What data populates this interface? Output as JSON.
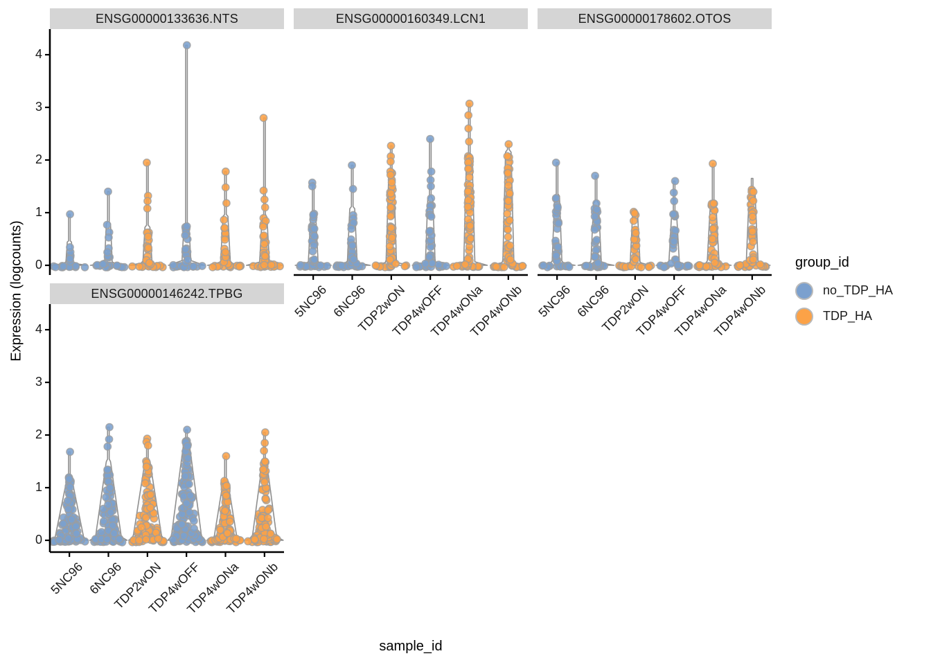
{
  "figure": {
    "y_axis_title": "Expression (logcounts)",
    "x_axis_title": "sample_id",
    "y_ticks": [
      "0",
      "1",
      "2",
      "3",
      "4"
    ],
    "x_categories": [
      "5NC96",
      "6NC96",
      "TDP2wON",
      "TDP4wOFF",
      "TDP4wONa",
      "TDP4wONb"
    ]
  },
  "legend": {
    "title": "group_id",
    "entries": [
      {
        "label": "no_TDP_HA",
        "color": "#7BA0CE"
      },
      {
        "label": "TDP_HA",
        "color": "#FCA247"
      }
    ]
  },
  "colors": {
    "no_TDP_HA": "#7BA0CE",
    "TDP_HA": "#FCA247",
    "point_stroke": "#9e9e9e",
    "violin_stroke": "#8e8e8e",
    "violin_fill": "#fbfbfb",
    "strip_bg": "#d5d5d5",
    "axis": "#000000"
  },
  "chart_data": {
    "type": "violin",
    "x": "sample_id",
    "y": "Expression (logcounts)",
    "group": "group_id",
    "y_range": [
      0,
      4.3
    ],
    "x_categories": [
      "5NC96",
      "6NC96",
      "TDP2wON",
      "TDP4wOFF",
      "TDP4wONa",
      "TDP4wONb"
    ],
    "groups_by_sample": {
      "5NC96": "no_TDP_HA",
      "6NC96": "no_TDP_HA",
      "TDP2wON": "TDP_HA",
      "TDP4wOFF": "no_TDP_HA",
      "TDP4wONa": "TDP_HA",
      "TDP4wONb": "TDP_HA"
    },
    "facets": [
      {
        "label": "ENSG00000133636.NTS",
        "violins": [
          {
            "sample": "5NC96",
            "group": "no_TDP_HA",
            "max": 0.97,
            "body": 0.45,
            "shape": "narrow",
            "stem_w": 5,
            "top_w": 3,
            "base_w": 26,
            "n_col": 6,
            "n_base": 14,
            "outliers": [
              0.97
            ]
          },
          {
            "sample": "6NC96",
            "group": "no_TDP_HA",
            "max": 1.4,
            "body": 0.8,
            "shape": "narrow",
            "stem_w": 5.5,
            "top_w": 3,
            "base_w": 26,
            "n_col": 11,
            "n_base": 14,
            "outliers": [
              1.4
            ]
          },
          {
            "sample": "TDP2wON",
            "group": "TDP_HA",
            "max": 1.95,
            "body": 0.75,
            "shape": "narrow",
            "stem_w": 6.5,
            "top_w": 3.5,
            "base_w": 26,
            "n_col": 16,
            "n_base": 14,
            "outliers": [
              1.95,
              1.32,
              1.22,
              1.08
            ]
          },
          {
            "sample": "TDP4wOFF",
            "group": "no_TDP_HA",
            "max": 4.18,
            "body": 0.78,
            "shape": "narrow",
            "stem_w": 6.5,
            "top_w": 3.5,
            "base_w": 26,
            "n_col": 18,
            "n_base": 14,
            "outliers": [
              4.18
            ]
          },
          {
            "sample": "TDP4wONa",
            "group": "TDP_HA",
            "max": 1.78,
            "body": 0.95,
            "shape": "narrow",
            "stem_w": 7,
            "top_w": 3.5,
            "base_w": 26,
            "n_col": 22,
            "n_base": 14,
            "outliers": [
              1.78,
              1.48,
              1.18
            ]
          },
          {
            "sample": "TDP4wONb",
            "group": "TDP_HA",
            "max": 2.8,
            "body": 0.92,
            "shape": "narrow",
            "stem_w": 7,
            "top_w": 3.5,
            "base_w": 26,
            "n_col": 22,
            "n_base": 14,
            "outliers": [
              2.8,
              1.42,
              1.25,
              1.1
            ]
          }
        ]
      },
      {
        "label": "ENSG00000160349.LCN1",
        "violins": [
          {
            "sample": "5NC96",
            "group": "no_TDP_HA",
            "max": 1.57,
            "body": 1.0,
            "shape": "narrow",
            "stem_w": 7,
            "top_w": 3.5,
            "base_w": 26,
            "n_col": 24,
            "n_base": 14,
            "outliers": [
              1.57,
              1.5
            ]
          },
          {
            "sample": "6NC96",
            "group": "no_TDP_HA",
            "max": 1.9,
            "body": 1.1,
            "shape": "narrow",
            "stem_w": 7,
            "top_w": 3.5,
            "base_w": 26,
            "n_col": 22,
            "n_base": 14,
            "outliers": [
              1.9,
              1.45
            ]
          },
          {
            "sample": "TDP2wON",
            "group": "TDP_HA",
            "max": 2.27,
            "body": 1.78,
            "shape": "narrow",
            "stem_w": 7.5,
            "top_w": 3.5,
            "base_w": 26,
            "n_col": 48,
            "n_base": 14,
            "outliers": [
              2.27,
              2.07,
              1.97
            ]
          },
          {
            "sample": "TDP4wOFF",
            "group": "no_TDP_HA",
            "max": 2.4,
            "body": 1.3,
            "shape": "narrow",
            "stem_w": 7,
            "top_w": 3.5,
            "base_w": 26,
            "n_col": 30,
            "n_base": 14,
            "outliers": [
              2.4,
              1.78,
              1.62,
              1.5
            ]
          },
          {
            "sample": "TDP4wONa",
            "group": "TDP_HA",
            "max": 3.07,
            "body": 2.1,
            "shape": "narrow",
            "stem_w": 8,
            "top_w": 4,
            "base_w": 26,
            "n_col": 55,
            "n_base": 14,
            "outliers": [
              3.07,
              2.85,
              2.6,
              2.35
            ]
          },
          {
            "sample": "TDP4wONb",
            "group": "TDP_HA",
            "max": 2.3,
            "body": 2.15,
            "shape": "narrow",
            "stem_w": 8,
            "top_w": 4,
            "base_w": 26,
            "n_col": 52,
            "n_base": 14,
            "outliers": [
              2.3
            ]
          }
        ]
      },
      {
        "label": "ENSG00000178602.OTOS",
        "violins": [
          {
            "sample": "5NC96",
            "group": "no_TDP_HA",
            "max": 1.95,
            "body": 1.32,
            "shape": "narrow",
            "stem_w": 7,
            "top_w": 3.5,
            "base_w": 26,
            "n_col": 26,
            "n_base": 14,
            "outliers": [
              1.95
            ]
          },
          {
            "sample": "6NC96",
            "group": "no_TDP_HA",
            "max": 1.7,
            "body": 1.2,
            "shape": "narrow",
            "stem_w": 7.5,
            "top_w": 3.5,
            "base_w": 26,
            "n_col": 28,
            "n_base": 14,
            "outliers": [
              1.7
            ]
          },
          {
            "sample": "TDP2wON",
            "group": "TDP_HA",
            "max": 1.05,
            "body": 1.02,
            "shape": "narrow",
            "stem_w": 7,
            "top_w": 3.5,
            "base_w": 26,
            "n_col": 20,
            "n_base": 14,
            "outliers": []
          },
          {
            "sample": "TDP4wOFF",
            "group": "no_TDP_HA",
            "max": 1.6,
            "body": 1.0,
            "shape": "narrow",
            "stem_w": 7.5,
            "top_w": 3.5,
            "base_w": 26,
            "n_col": 22,
            "n_base": 14,
            "outliers": [
              1.6,
              1.38,
              1.22
            ]
          },
          {
            "sample": "TDP4wONa",
            "group": "TDP_HA",
            "max": 1.93,
            "body": 1.18,
            "shape": "narrow",
            "stem_w": 8.5,
            "top_w": 4,
            "base_w": 26,
            "n_col": 32,
            "n_base": 14,
            "outliers": [
              1.93
            ]
          },
          {
            "sample": "TDP4wONb",
            "group": "TDP_HA",
            "max": 1.65,
            "body": 1.45,
            "shape": "narrow",
            "stem_w": 8.5,
            "top_w": 4,
            "base_w": 26,
            "n_col": 34,
            "n_base": 14,
            "outliers": []
          }
        ]
      },
      {
        "label": "ENSG00000146242.TPBG",
        "violins": [
          {
            "sample": "5NC96",
            "group": "no_TDP_HA",
            "max": 1.68,
            "body": 1.2,
            "shape": "cone",
            "stem_w": 20,
            "top_w": 3,
            "base_w": 27,
            "n_col": 85,
            "n_base": 14,
            "outliers": [
              1.68
            ]
          },
          {
            "sample": "6NC96",
            "group": "no_TDP_HA",
            "max": 2.15,
            "body": 1.5,
            "shape": "cone",
            "stem_w": 18,
            "top_w": 3,
            "base_w": 27,
            "n_col": 80,
            "n_base": 14,
            "outliers": [
              2.15,
              1.92,
              1.78
            ]
          },
          {
            "sample": "TDP2wON",
            "group": "TDP_HA",
            "max": 1.93,
            "body": 1.55,
            "shape": "cone",
            "stem_w": 20,
            "top_w": 3,
            "base_w": 27,
            "n_col": 90,
            "n_base": 14,
            "outliers": [
              1.93,
              1.87,
              1.8
            ]
          },
          {
            "sample": "TDP4wOFF",
            "group": "no_TDP_HA",
            "max": 2.1,
            "body": 1.95,
            "shape": "cone",
            "stem_w": 21,
            "top_w": 3,
            "base_w": 27,
            "n_col": 130,
            "n_base": 14,
            "outliers": [
              2.1
            ]
          },
          {
            "sample": "TDP4wONa",
            "group": "TDP_HA",
            "max": 1.6,
            "body": 1.15,
            "shape": "cone",
            "stem_w": 16,
            "top_w": 3,
            "base_w": 27,
            "n_col": 70,
            "n_base": 14,
            "outliers": [
              1.6
            ]
          },
          {
            "sample": "TDP4wONb",
            "group": "TDP_HA",
            "max": 2.05,
            "body": 1.5,
            "shape": "cone",
            "stem_w": 17,
            "top_w": 3,
            "base_w": 27,
            "n_col": 80,
            "n_base": 14,
            "outliers": [
              2.05,
              1.85,
              1.7
            ]
          }
        ]
      }
    ]
  }
}
